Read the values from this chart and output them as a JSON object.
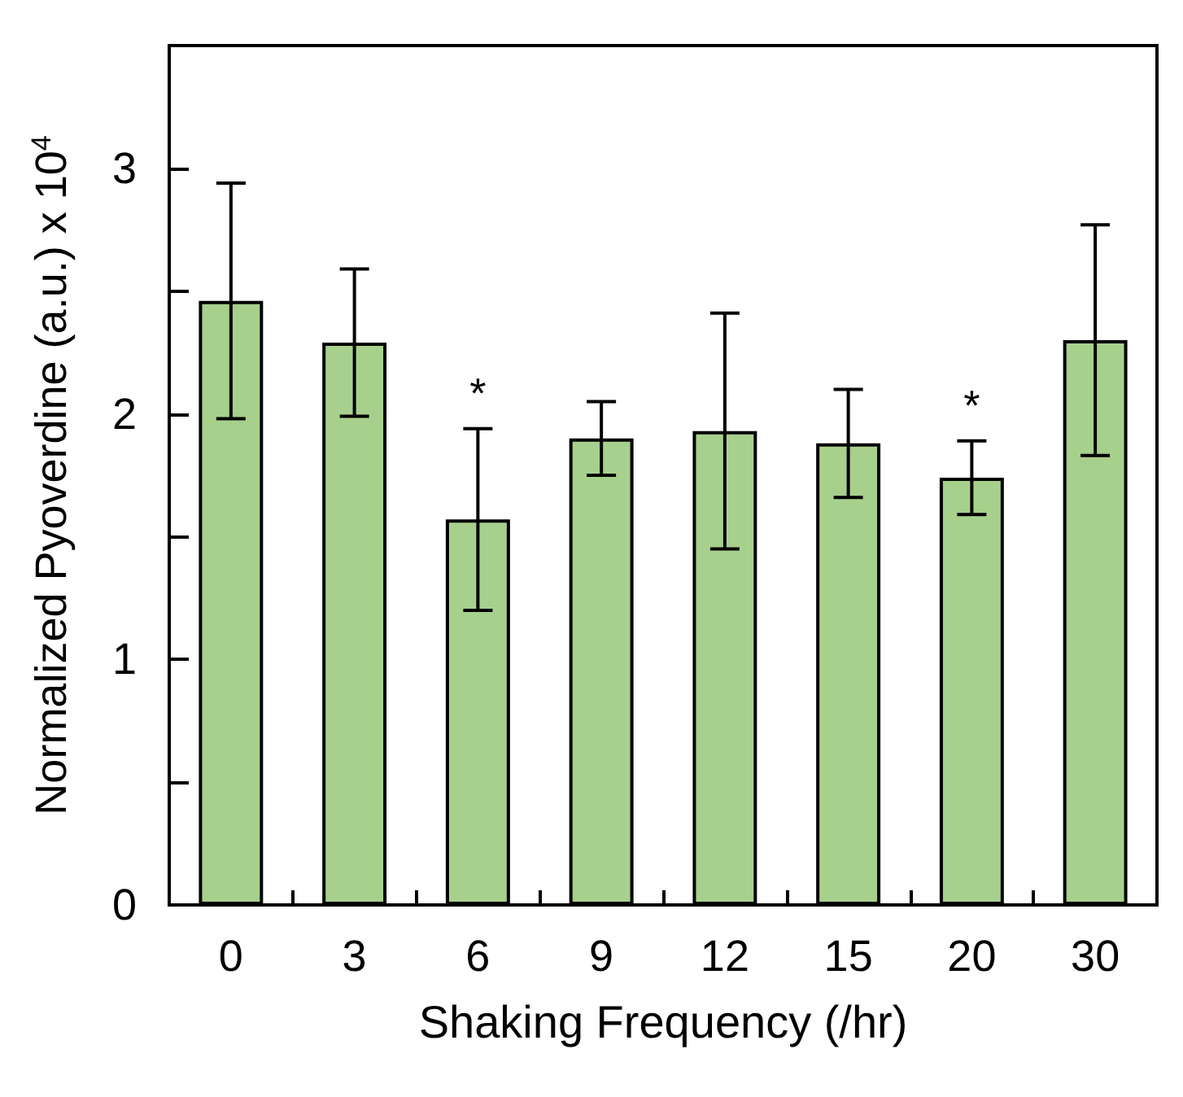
{
  "chart_data": {
    "type": "bar",
    "xlabel": "Shaking Frequency (/hr)",
    "ylabel": "Normalized Pyoverdine (a.u.) x 10$^{4}$",
    "categories": [
      "0",
      "3",
      "6",
      "9",
      "12",
      "15",
      "20",
      "30"
    ],
    "values": [
      2.46,
      2.29,
      1.57,
      1.9,
      1.93,
      1.88,
      1.74,
      2.3
    ],
    "errors": [
      0.48,
      0.3,
      0.37,
      0.15,
      0.48,
      0.22,
      0.15,
      0.47
    ],
    "color": "#a8d08d",
    "ylim": [
      0,
      3.5
    ],
    "yticks": [
      0,
      {
        "value": 0.5,
        "label": null
      },
      1,
      {
        "value": 1.5,
        "label": null
      },
      2,
      {
        "value": 2.5,
        "label": null
      },
      3
    ],
    "annotations": [
      {
        "text": "*",
        "x": "6",
        "y": 1.94
      },
      {
        "text": "*",
        "x": "20",
        "y": 1.89
      }
    ],
    "grid": false
  }
}
